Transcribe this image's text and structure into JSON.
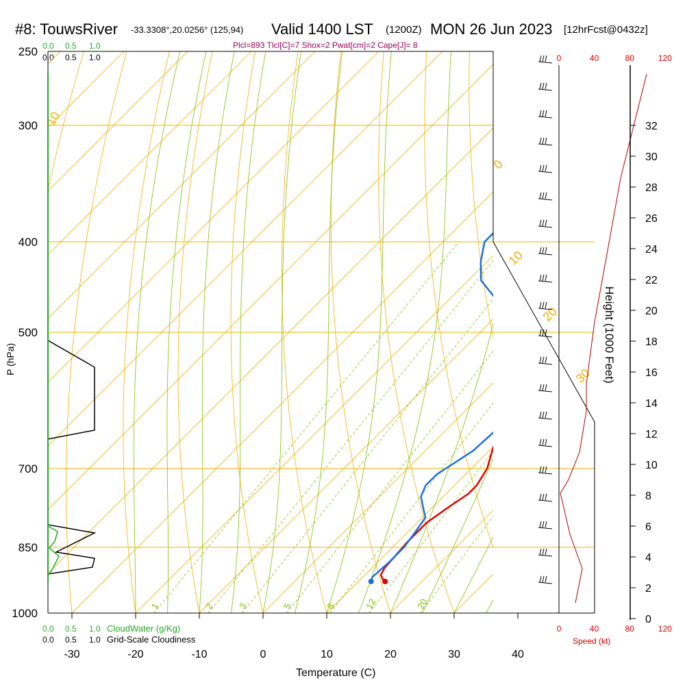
{
  "header": {
    "station": "#8: TouwsRiver",
    "coords": "-33.3308°,20.0256° (125,94)",
    "valid_prefix": "Valid 1400 LST",
    "valid_z": "(1200Z)",
    "date": "MON 26 Jun 2023",
    "forecast": "[12hrFcst@0432z]",
    "indices": "Plcl=893 Tlcl[C]=7 Shox=2 Pwat[cm]=2 Cape[J]= 8"
  },
  "chart_data": {
    "type": "line",
    "xlabel": "Temperature (C)",
    "ylabel": "P (hPa)",
    "right_axis_label": "Height (1000 Feet)",
    "x_ticks": [
      "-30",
      "-20",
      "-10",
      "0",
      "10",
      "20",
      "30",
      "40"
    ],
    "x_tick_values": [
      -30,
      -20,
      -10,
      0,
      10,
      20,
      30,
      40
    ],
    "p_ticks": [
      "250",
      "300",
      "400",
      "500",
      "700",
      "850",
      "1000"
    ],
    "p_tick_values": [
      250,
      300,
      400,
      500,
      700,
      850,
      1000
    ],
    "height_ticks": [
      "0",
      "2",
      "4",
      "6",
      "8",
      "10",
      "12",
      "14",
      "16",
      "18",
      "20",
      "22",
      "24",
      "26",
      "28",
      "30",
      "32"
    ],
    "height_tick_values": [
      0,
      2,
      4,
      6,
      8,
      10,
      12,
      14,
      16,
      18,
      20,
      22,
      24,
      26,
      28,
      30,
      32
    ],
    "xlim": [
      -35,
      45
    ],
    "plim": [
      250,
      1000
    ],
    "series": [
      {
        "color": "#e00000",
        "points": [
          [
            14.2,
            925
          ],
          [
            13.5,
            920
          ],
          [
            12.5,
            910
          ],
          [
            12.0,
            895
          ],
          [
            11.8,
            870
          ],
          [
            11.5,
            840
          ],
          [
            11.5,
            800
          ],
          [
            12.5,
            770
          ],
          [
            13.5,
            745
          ],
          [
            13.5,
            730
          ],
          [
            12.5,
            700
          ],
          [
            10.5,
            670
          ],
          [
            8.0,
            630
          ],
          [
            6.5,
            600
          ],
          [
            5.0,
            570
          ],
          [
            3.5,
            550
          ],
          [
            2.0,
            520
          ],
          [
            0.5,
            480
          ],
          [
            -1.0,
            440
          ],
          [
            -3.0,
            400
          ],
          [
            -5.0,
            370
          ],
          [
            -7.0,
            340
          ],
          [
            -8.0,
            320
          ],
          [
            -8.5,
            305
          ],
          [
            -8.0,
            290
          ],
          [
            -6.5,
            270
          ],
          [
            -5.5,
            260
          ]
        ]
      },
      {
        "color": "#1a6fe0",
        "points": [
          [
            12.0,
            925
          ],
          [
            11.5,
            915
          ],
          [
            11.8,
            880
          ],
          [
            11.8,
            850
          ],
          [
            11.2,
            820
          ],
          [
            10.5,
            790
          ],
          [
            8.5,
            770
          ],
          [
            6.5,
            750
          ],
          [
            5.5,
            730
          ],
          [
            5.5,
            710
          ],
          [
            6.5,
            690
          ],
          [
            7.5,
            670
          ],
          [
            7.8,
            640
          ],
          [
            7.5,
            615
          ],
          [
            6.5,
            590
          ],
          [
            5.5,
            565
          ],
          [
            4.0,
            540
          ],
          [
            2.0,
            525
          ],
          [
            -8.0,
            480
          ],
          [
            -18.0,
            440
          ],
          [
            -21.0,
            420
          ],
          [
            -23.5,
            400
          ],
          [
            -23.5,
            380
          ],
          [
            -23.5,
            365
          ],
          [
            -24.5,
            345
          ],
          [
            -25.5,
            320
          ],
          [
            -25.0,
            300
          ],
          [
            -21.0,
            280
          ],
          [
            -17.0,
            262
          ]
        ]
      }
    ],
    "mixing_ratio_labels": [
      "1",
      "2",
      "3",
      "5",
      "8",
      "12",
      "20"
    ],
    "mixing_ratio_values": [
      1,
      2,
      3,
      5,
      8,
      12,
      20
    ],
    "isotherm_labels": [
      "10",
      "0",
      "10",
      "20",
      "30"
    ],
    "top_left_labels": {
      "cloudwater": [
        "0.0",
        "0.5",
        "1.0"
      ],
      "cloudiness": [
        "0.0",
        "0.5",
        "1.0"
      ]
    },
    "bottom_left": {
      "cloudwater_ticks": [
        "0.0",
        "0.5",
        "1.0"
      ],
      "cloudwater_label": "CloudWater (g/Kg)",
      "cloudiness_ticks": [
        "0.0",
        "0.5",
        "1.0"
      ],
      "cloudiness_label": "Grid-Scale Cloudiness"
    },
    "speed_axis": {
      "ticks": [
        "0",
        "40",
        "80",
        "120"
      ],
      "tick_values": [
        0,
        40,
        80,
        120
      ],
      "label": "Speed (kt)"
    }
  },
  "colors": {
    "temperature": "#e00000",
    "dewpoint": "#1a6fe0",
    "isobar": "#f0b000",
    "dry_adiabat": "#80c000",
    "mixing_ratio": "#80c000",
    "cloud": "#22aa22"
  }
}
